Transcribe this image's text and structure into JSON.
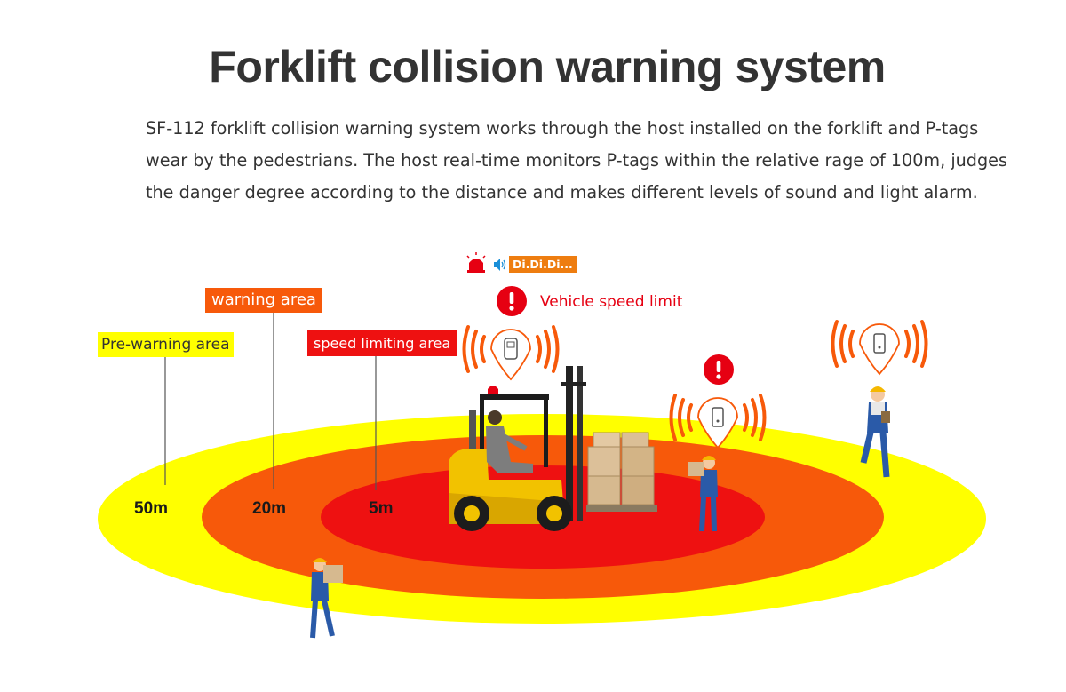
{
  "title": "Forklift collision warning system",
  "description": [
    "SF-112 forklift collision warning system works through the host installed on the forklift and P-tags",
    "wear by the pedestrians. The host real-time monitors P-tags within the relative rage of 100m, judges",
    "the danger degree according to the distance and makes different levels of sound and light alarm."
  ],
  "zones": {
    "pre_warning": {
      "label": "Pre-warning  area",
      "distance": "50m",
      "color": "#ffff00"
    },
    "warning": {
      "label": "warning area",
      "distance": "20m",
      "color": "#f7590a"
    },
    "speed_limiting": {
      "label": "speed limiting area",
      "distance": "5m",
      "color": "#ee1111"
    }
  },
  "alarm": {
    "sound_text": "Di.Di.Di...",
    "vehicle_message": "Vehicle speed limit"
  },
  "icons": [
    "siren-icon",
    "speaker-icon",
    "exclamation-icon",
    "p-tag-icon",
    "signal-wave-icon",
    "forklift",
    "worker"
  ]
}
